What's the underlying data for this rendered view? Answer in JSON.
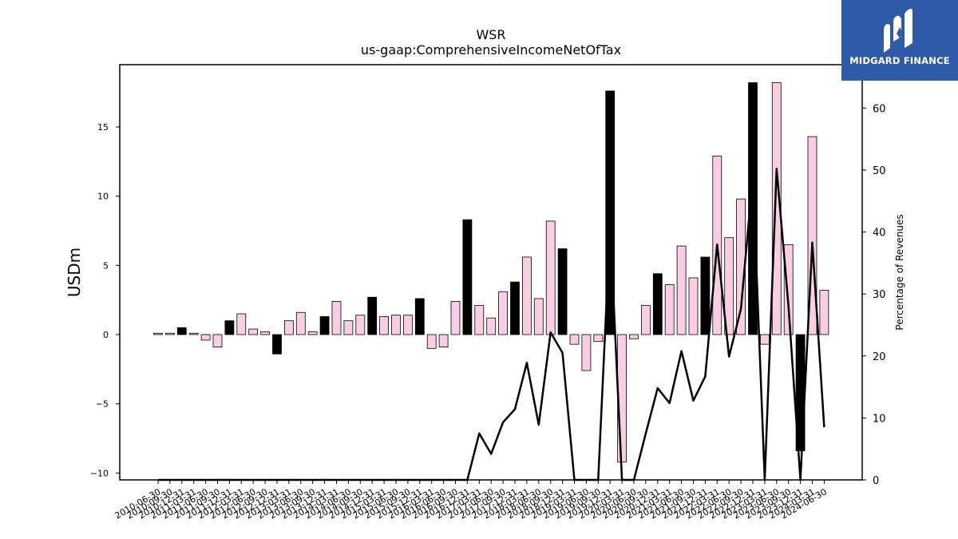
{
  "logo": {
    "text": "MIDGARD FINANCE",
    "icon": "midgard-logo-icon",
    "background": "#2f5aa8"
  },
  "chart_data": {
    "type": "bar",
    "title": "WSR",
    "subtitle": "us-gaap:ComprehensiveIncomeNetOfTax",
    "ylabel": "USDm",
    "y2label": "Percentage of Revenues",
    "ylim": [
      -10.5,
      19.5
    ],
    "y2lim": [
      0,
      67
    ],
    "yticks": [
      -10,
      -5,
      0,
      5,
      10,
      15
    ],
    "y2ticks": [
      0,
      10,
      20,
      30,
      40,
      50,
      60
    ],
    "colors": {
      "quarter_bar": "#f9cde3",
      "annual_bar": "#000000",
      "line": "#000000"
    },
    "categories": [
      "2010-06-30",
      "2010-09-30",
      "2010-12-31",
      "2011-03-31",
      "2011-06-30",
      "2011-09-30",
      "2011-12-31",
      "2012-03-31",
      "2012-06-30",
      "2012-09-30",
      "2012-12-31",
      "2013-03-31",
      "2013-06-30",
      "2013-09-30",
      "2013-12-31",
      "2014-03-31",
      "2014-06-30",
      "2014-09-30",
      "2014-12-31",
      "2015-03-31",
      "2015-06-30",
      "2015-09-30",
      "2015-12-31",
      "2016-03-31",
      "2016-06-30",
      "2016-09-30",
      "2016-12-31",
      "2017-03-31",
      "2017-06-30",
      "2017-09-30",
      "2017-12-31",
      "2018-03-31",
      "2018-06-30",
      "2018-09-30",
      "2018-12-31",
      "2019-03-31",
      "2019-06-30",
      "2019-09-30",
      "2019-12-31",
      "2020-03-31",
      "2020-06-30",
      "2020-09-30",
      "2020-12-31",
      "2021-03-31",
      "2021-06-30",
      "2021-09-30",
      "2021-12-31",
      "2022-03-31",
      "2022-06-30",
      "2022-09-30",
      "2022-12-31",
      "2023-03-31",
      "2023-06-30",
      "2023-09-30",
      "2023-12-31",
      "2024-03-31",
      "2024-06-30"
    ],
    "series": [
      {
        "values": [
          0.1,
          0.1,
          0.5,
          0.1,
          -0.4,
          -0.9,
          1.0,
          1.5,
          0.4,
          0.2,
          -1.4,
          1.0,
          1.6,
          0.2,
          1.3,
          2.4,
          1.0,
          1.4,
          2.7,
          1.3,
          1.4,
          1.4,
          2.6,
          -1.0,
          -0.9,
          2.4,
          8.3,
          2.1,
          1.2,
          3.1,
          3.8,
          5.6,
          2.6,
          8.2,
          6.2,
          -0.7,
          -2.6,
          -0.5,
          17.6,
          -9.2,
          -0.3,
          2.1,
          4.4,
          3.6,
          6.4,
          4.1,
          5.6,
          12.9,
          7.0,
          9.8,
          18.2,
          -0.7,
          18.2,
          6.5,
          -8.4,
          14.3,
          3.2
        ],
        "annual": [
          false,
          false,
          true,
          false,
          false,
          false,
          true,
          false,
          false,
          false,
          true,
          false,
          false,
          false,
          true,
          false,
          false,
          false,
          true,
          false,
          false,
          false,
          true,
          false,
          false,
          false,
          true,
          false,
          false,
          false,
          true,
          false,
          false,
          false,
          true,
          false,
          false,
          false,
          true,
          false,
          false,
          false,
          true,
          false,
          false,
          false,
          true,
          false,
          false,
          false,
          true,
          false,
          false,
          false,
          true,
          false,
          false
        ]
      },
      {
        "axis": "right",
        "values": [
          0,
          0,
          0,
          0,
          0,
          0,
          0,
          0,
          0,
          0,
          0,
          0,
          0,
          0,
          0,
          0,
          0,
          0,
          0,
          0,
          0,
          0,
          0,
          0,
          0,
          0,
          0,
          7.5,
          4.2,
          9.3,
          11.4,
          18.9,
          8.9,
          23.8,
          20.5,
          0,
          0,
          0,
          41,
          0,
          0,
          7.5,
          14.8,
          12.4,
          20.8,
          12.8,
          16.7,
          38.0,
          19.9,
          27.6,
          49,
          0,
          50.2,
          28,
          0,
          38.3,
          8.5
        ]
      }
    ]
  }
}
